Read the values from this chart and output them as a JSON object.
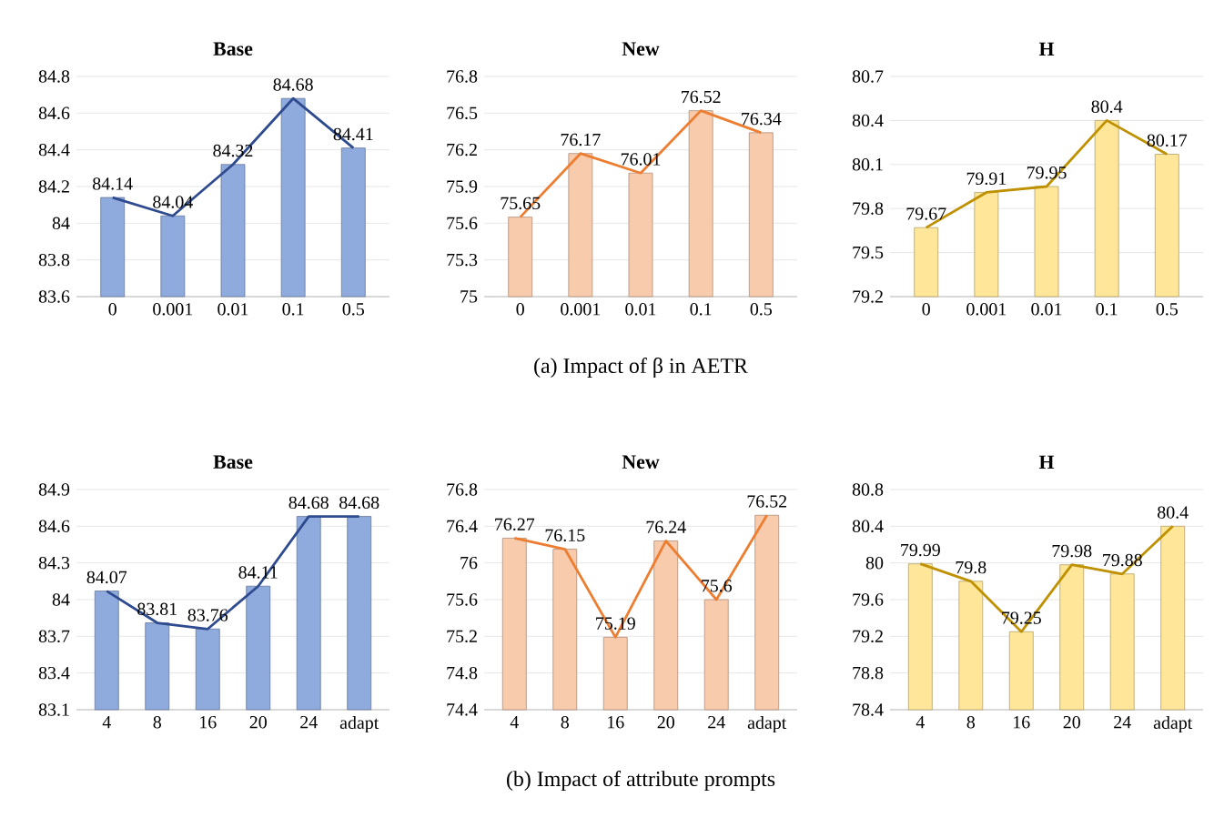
{
  "chart_data": [
    {
      "type": "bar",
      "title": "Base",
      "categories": [
        "0",
        "0.001",
        "0.01",
        "0.1",
        "0.5"
      ],
      "series": [
        {
          "color": "#8faadc",
          "values": [
            84.14,
            84.04,
            84.32,
            84.68,
            84.41
          ]
        },
        {
          "type": "line",
          "color": "#2f4b8f",
          "values": [
            84.14,
            84.04,
            84.32,
            84.68,
            84.41
          ],
          "value_labels": [
            "84.14",
            "84.04",
            "84.32",
            "84.68",
            "84.41"
          ]
        }
      ],
      "ylim": [
        83.6,
        84.8
      ],
      "yticks": [
        83.6,
        83.8,
        84,
        84.2,
        84.4,
        84.6,
        84.8
      ],
      "grid": "y"
    },
    {
      "type": "bar",
      "title": "New",
      "categories": [
        "0",
        "0.001",
        "0.01",
        "0.1",
        "0.5"
      ],
      "series": [
        {
          "color": "#f8cbad",
          "values": [
            75.65,
            76.17,
            76.01,
            76.52,
            76.34
          ]
        },
        {
          "type": "line",
          "color": "#ed7d31",
          "values": [
            75.65,
            76.17,
            76.01,
            76.52,
            76.34
          ],
          "value_labels": [
            "75.65",
            "76.17",
            "76.01",
            "76.52",
            "76.34"
          ]
        }
      ],
      "ylim": [
        75,
        76.8
      ],
      "yticks": [
        75,
        75.3,
        75.6,
        75.9,
        76.2,
        76.5,
        76.8
      ],
      "grid": "y",
      "annotations": [
        "(a) Impact of β in AETR"
      ]
    },
    {
      "type": "bar",
      "title": "H",
      "categories": [
        "0",
        "0.001",
        "0.01",
        "0.1",
        "0.5"
      ],
      "series": [
        {
          "color": "#ffe699",
          "values": [
            79.67,
            79.91,
            79.95,
            80.4,
            80.17
          ]
        },
        {
          "type": "line",
          "color": "#bf9000",
          "values": [
            79.67,
            79.91,
            79.95,
            80.4,
            80.17
          ],
          "value_labels": [
            "79.67",
            "79.91",
            "79.95",
            "80.4",
            "80.17"
          ]
        }
      ],
      "ylim": [
        79.2,
        80.7
      ],
      "yticks": [
        79.2,
        79.5,
        79.8,
        80.1,
        80.4,
        80.7
      ],
      "grid": "y"
    },
    {
      "type": "bar",
      "title": "Base",
      "categories": [
        "4",
        "8",
        "16",
        "20",
        "24",
        "adapt"
      ],
      "series": [
        {
          "color": "#8faadc",
          "values": [
            84.07,
            83.81,
            83.76,
            84.11,
            84.68,
            84.68
          ]
        },
        {
          "type": "line",
          "color": "#2f4b8f",
          "values": [
            84.07,
            83.81,
            83.76,
            84.11,
            84.68,
            84.68
          ],
          "value_labels": [
            "84.07",
            "83.81",
            "83.76",
            "84.11",
            "84.68",
            "84.68"
          ]
        }
      ],
      "ylim": [
        83.1,
        84.9
      ],
      "yticks": [
        83.1,
        83.4,
        83.7,
        84,
        84.3,
        84.6,
        84.9
      ],
      "grid": "y"
    },
    {
      "type": "bar",
      "title": "New",
      "categories": [
        "4",
        "8",
        "16",
        "20",
        "24",
        "adapt"
      ],
      "series": [
        {
          "color": "#f8cbad",
          "values": [
            76.27,
            76.15,
            75.19,
            76.24,
            75.6,
            76.52
          ]
        },
        {
          "type": "line",
          "color": "#ed7d31",
          "values": [
            76.27,
            76.15,
            75.19,
            76.24,
            75.6,
            76.52
          ],
          "value_labels": [
            "76.27",
            "76.15",
            "75.19",
            "76.24",
            "75.6",
            "76.52"
          ]
        }
      ],
      "ylim": [
        74.4,
        76.8
      ],
      "yticks": [
        74.4,
        74.8,
        75.2,
        75.6,
        76,
        76.4,
        76.8
      ],
      "grid": "y",
      "annotations": [
        "(b) Impact of  attribute prompts"
      ]
    },
    {
      "type": "bar",
      "title": "H",
      "categories": [
        "4",
        "8",
        "16",
        "20",
        "24",
        "adapt"
      ],
      "series": [
        {
          "color": "#ffe699",
          "values": [
            79.99,
            79.8,
            79.25,
            79.98,
            79.88,
            80.4
          ]
        },
        {
          "type": "line",
          "color": "#bf9000",
          "values": [
            79.99,
            79.8,
            79.25,
            79.98,
            79.88,
            80.4
          ],
          "value_labels": [
            "79.99",
            "79.8",
            "79.25",
            "79.98",
            "79.88",
            "80.4"
          ]
        }
      ],
      "ylim": [
        78.4,
        80.8
      ],
      "yticks": [
        78.4,
        78.8,
        79.2,
        79.6,
        80,
        80.4,
        80.8
      ],
      "grid": "y"
    }
  ]
}
